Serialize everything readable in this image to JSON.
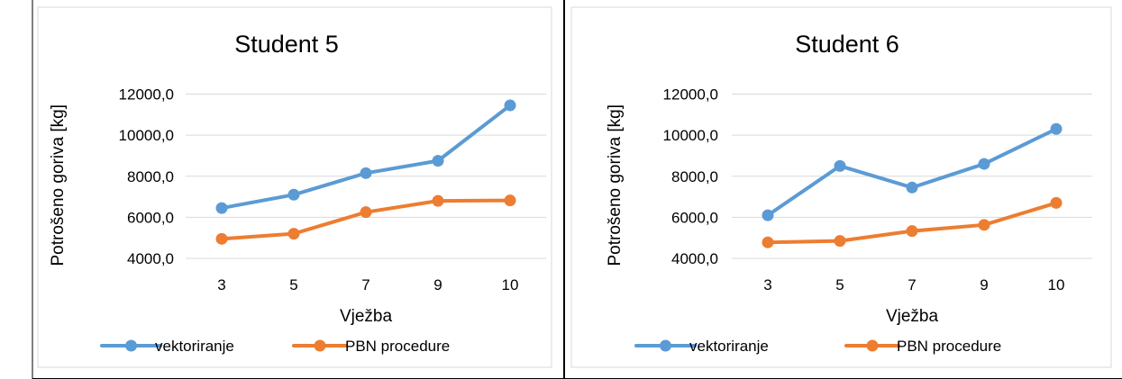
{
  "chart_data": [
    {
      "type": "line",
      "title": "Student 5",
      "xlabel": "Vježba",
      "ylabel": "Potrošeno goriva [kg]",
      "categories": [
        "3",
        "5",
        "7",
        "9",
        "10"
      ],
      "y_ticks": [
        "4000,0",
        "6000,0",
        "8000,0",
        "10000,0",
        "12000,0"
      ],
      "ylim": [
        4000,
        12000
      ],
      "grid": true,
      "legend_position": "bottom",
      "series": [
        {
          "name": "vektoriranje",
          "color": "#5B9BD5",
          "values": [
            6450,
            7100,
            8150,
            8750,
            11450
          ]
        },
        {
          "name": "PBN procedure",
          "color": "#ED7D31",
          "values": [
            4950,
            5200,
            6250,
            6800,
            6820
          ]
        }
      ]
    },
    {
      "type": "line",
      "title": "Student 6",
      "xlabel": "Vježba",
      "ylabel": "Potrošeno goriva [kg]",
      "categories": [
        "3",
        "5",
        "7",
        "9",
        "10"
      ],
      "y_ticks": [
        "4000,0",
        "6000,0",
        "8000,0",
        "10000,0",
        "12000,0"
      ],
      "ylim": [
        4000,
        12000
      ],
      "grid": true,
      "legend_position": "bottom",
      "series": [
        {
          "name": "vektoriranje",
          "color": "#5B9BD5",
          "values": [
            6100,
            8500,
            7450,
            8600,
            10300
          ]
        },
        {
          "name": "PBN procedure",
          "color": "#ED7D31",
          "values": [
            4780,
            4850,
            5330,
            5630,
            6700
          ]
        }
      ]
    }
  ]
}
